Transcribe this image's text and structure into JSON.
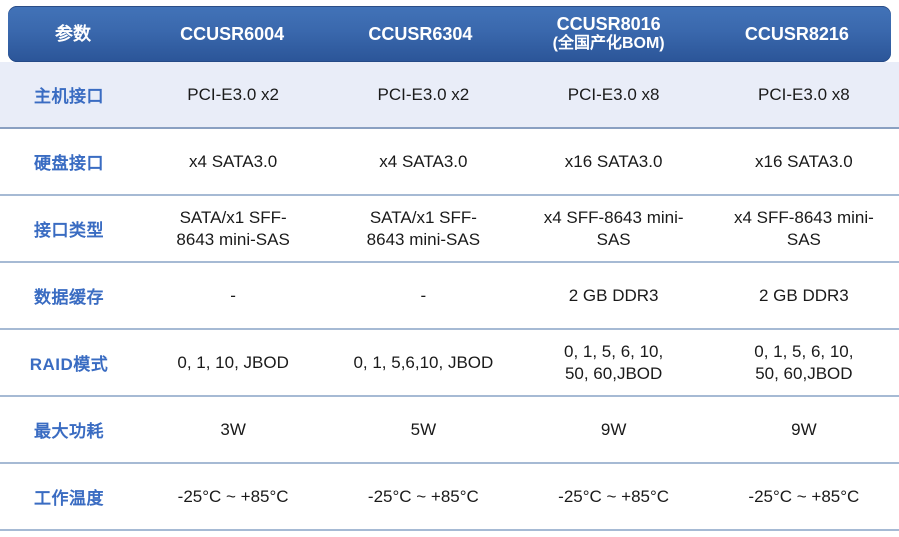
{
  "table": {
    "header": {
      "param_label": "参数",
      "columns": [
        {
          "title": "CCUSR6004",
          "subtitle": ""
        },
        {
          "title": "CCUSR6304",
          "subtitle": ""
        },
        {
          "title": "CCUSR8016",
          "subtitle": "(全国产化BOM)"
        },
        {
          "title": "CCUSR8216",
          "subtitle": ""
        }
      ]
    },
    "rows": [
      {
        "label": "主机接口",
        "values": [
          "PCI-E3.0 x2",
          "PCI-E3.0 x2",
          "PCI-E3.0 x8",
          "PCI-E3.0 x8"
        ]
      },
      {
        "label": "硬盘接口",
        "values": [
          "x4 SATA3.0",
          "x4 SATA3.0",
          "x16 SATA3.0",
          "x16 SATA3.0"
        ]
      },
      {
        "label": "接口类型",
        "values": [
          "SATA/x1 SFF-\n8643 mini-SAS",
          "SATA/x1 SFF-\n8643 mini-SAS",
          "x4 SFF-8643 mini-\nSAS",
          "x4 SFF-8643 mini-\nSAS"
        ]
      },
      {
        "label": "数据缓存",
        "values": [
          "-",
          "-",
          "2 GB DDR3",
          "2 GB DDR3"
        ]
      },
      {
        "label": "RAID模式",
        "values": [
          "0, 1, 10, JBOD",
          "0, 1, 5,6,10, JBOD",
          "0, 1, 5, 6, 10,\n50, 60,JBOD",
          "0, 1, 5, 6, 10,\n50, 60,JBOD"
        ]
      },
      {
        "label": "最大功耗",
        "values": [
          "3W",
          "5W",
          "9W",
          "9W"
        ]
      },
      {
        "label": "工作温度",
        "values": [
          "-25°C ~ +85°C",
          "-25°C ~ +85°C",
          "-25°C ~ +85°C",
          "-25°C ~ +85°C"
        ]
      }
    ]
  },
  "colors": {
    "header_top": "#4273b8",
    "header_mid": "#3a68ad",
    "header_bottom": "#2b5598",
    "label_color": "#3a6cc2",
    "row_highlight": "#e9edf8",
    "divider_strong": "#8aa0c2",
    "divider_light": "#a6bad4",
    "body_text": "#1a1a1a"
  }
}
